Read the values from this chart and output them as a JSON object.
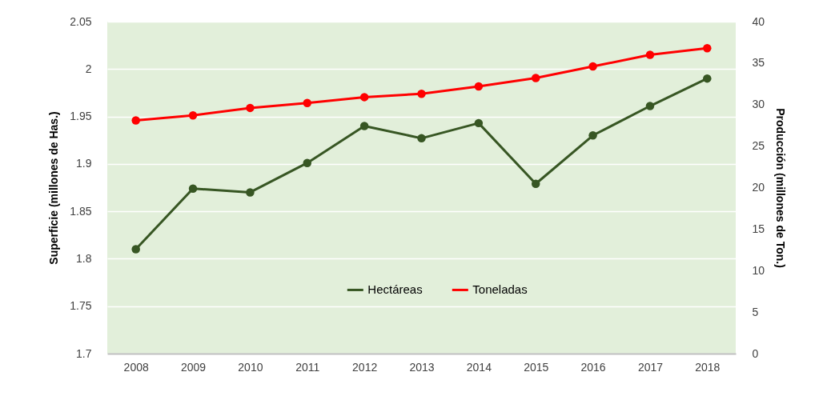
{
  "chart_data": {
    "type": "line",
    "ylabel": "Superficie (millones de Has.)",
    "y2label": "Producción (millones de Ton.)",
    "categories": [
      "2008",
      "2009",
      "2010",
      "2011",
      "2012",
      "2013",
      "2014",
      "2015",
      "2016",
      "2017",
      "2018"
    ],
    "series": [
      {
        "name": "Hectáreas",
        "color": "#375623",
        "values": [
          1.81,
          1.874,
          1.87,
          1.901,
          1.94,
          1.927,
          1.943,
          1.879,
          1.93,
          1.961,
          1.99
        ]
      },
      {
        "name": "Toneladas",
        "color": "#ff0000",
        "axis": "y2",
        "values": [
          28.1,
          28.7,
          29.6,
          30.2,
          30.9,
          31.3,
          32.2,
          33.2,
          34.6,
          36.0,
          36.8
        ]
      }
    ],
    "ylim": [
      1.7,
      2.05
    ],
    "yticks": [
      1.7,
      1.75,
      1.8,
      1.85,
      1.9,
      1.95,
      2,
      2.05
    ],
    "y2lim": [
      0,
      40
    ],
    "y2ticks": [
      0,
      5,
      10,
      15,
      20,
      25,
      30,
      35,
      40
    ],
    "grid": "y",
    "legend": "bottom",
    "marker": "circle",
    "line_style": "solid"
  }
}
